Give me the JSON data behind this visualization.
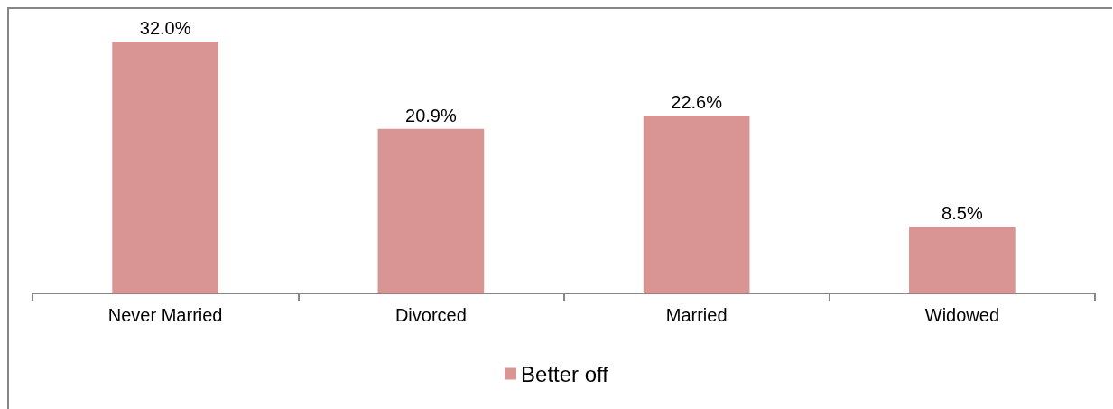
{
  "chart_data": {
    "type": "bar",
    "categories": [
      "Never Married",
      "Divorced",
      "Married",
      "Widowed"
    ],
    "series": [
      {
        "name": "Better off",
        "color": "#d99594",
        "values": [
          32.0,
          20.9,
          22.6,
          8.5
        ],
        "value_labels": [
          "32.0%",
          "20.9%",
          "22.6%",
          "8.5%"
        ]
      }
    ],
    "legend": "bottom",
    "tick_labels": "x"
  }
}
